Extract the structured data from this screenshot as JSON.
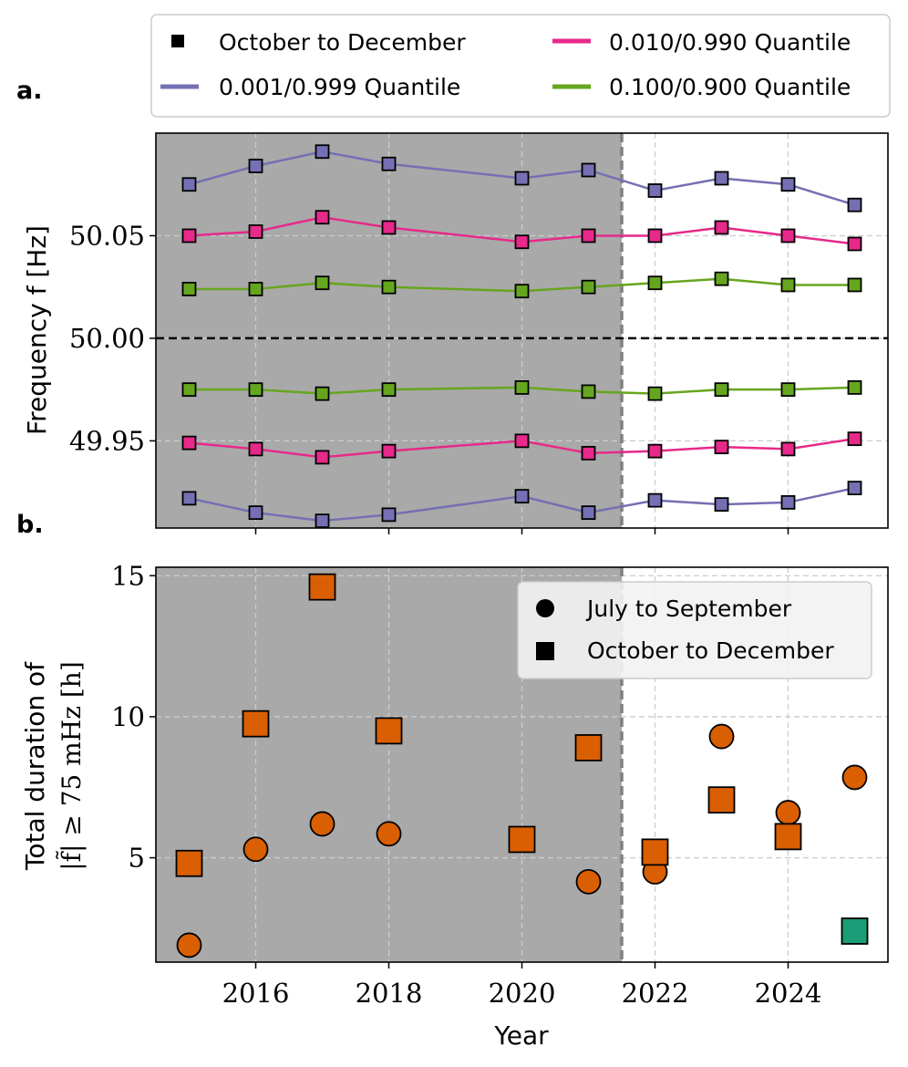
{
  "colors": {
    "q001": "#7570b3",
    "q010": "#e7298a",
    "q100": "#66a61e",
    "orange": "#d95f02",
    "teal": "#1b9e77",
    "shade": "#a9a9a9",
    "grid": "#cccccc",
    "dash_gray": "#808080"
  },
  "chart_data": [
    {
      "panel_label": "a.",
      "type": "line",
      "ylabel": "Frequency f [Hz]",
      "xlim": [
        2014.5,
        2025.5
      ],
      "ylim": [
        49.9075,
        50.1
      ],
      "yticks": [
        49.95,
        50.0,
        50.05
      ],
      "ytick_labels": [
        "49.95",
        "50.00",
        "50.05"
      ],
      "shaded_until": 2021.5,
      "reference_line": 50.0,
      "legend": {
        "entries": [
          {
            "label": "October to December",
            "kind": "marker"
          },
          {
            "label": "0.010/0.990 Quantile",
            "kind": "line",
            "color_key": "q010"
          },
          {
            "label": "0.001/0.999 Quantile",
            "kind": "line",
            "color_key": "q001"
          },
          {
            "label": "0.100/0.900 Quantile",
            "kind": "line",
            "color_key": "q100"
          }
        ]
      },
      "x": [
        2015,
        2016,
        2017,
        2018,
        2020,
        2021,
        2022,
        2023,
        2024,
        2025
      ],
      "series": [
        {
          "name": "0.001/0.999 Quantile upper",
          "color_key": "q001",
          "values": [
            50.075,
            50.084,
            50.091,
            50.085,
            50.078,
            50.082,
            50.072,
            50.078,
            50.075,
            50.065
          ]
        },
        {
          "name": "0.010/0.990 Quantile upper",
          "color_key": "q010",
          "values": [
            50.05,
            50.052,
            50.059,
            50.054,
            50.047,
            50.05,
            50.05,
            50.054,
            50.05,
            50.046
          ]
        },
        {
          "name": "0.100/0.900 Quantile upper",
          "color_key": "q100",
          "values": [
            50.024,
            50.024,
            50.027,
            50.025,
            50.023,
            50.025,
            50.027,
            50.029,
            50.026,
            50.026
          ]
        },
        {
          "name": "0.100/0.900 Quantile lower",
          "color_key": "q100",
          "values": [
            49.975,
            49.975,
            49.973,
            49.975,
            49.976,
            49.974,
            49.973,
            49.975,
            49.975,
            49.976
          ]
        },
        {
          "name": "0.010/0.990 Quantile lower",
          "color_key": "q010",
          "values": [
            49.949,
            49.946,
            49.942,
            49.945,
            49.95,
            49.944,
            49.945,
            49.947,
            49.946,
            49.951
          ]
        },
        {
          "name": "0.001/0.999 Quantile lower",
          "color_key": "q001",
          "values": [
            49.922,
            49.915,
            49.911,
            49.914,
            49.923,
            49.915,
            49.921,
            49.919,
            49.92,
            49.927
          ]
        }
      ]
    },
    {
      "panel_label": "b.",
      "type": "scatter",
      "xlabel": "Year",
      "ylabel_line1": "Total duration of",
      "ylabel_line2": "|f̃| ≥ 75 mHz [h]",
      "xlim": [
        2014.5,
        2025.5
      ],
      "ylim": [
        1.3,
        15.3
      ],
      "xticks": [
        2016,
        2018,
        2020,
        2022,
        2024
      ],
      "xtick_labels": [
        "2016",
        "2018",
        "2020",
        "2022",
        "2024"
      ],
      "yticks": [
        5,
        10,
        15
      ],
      "ytick_labels": [
        "5",
        "10",
        "15"
      ],
      "shaded_until": 2021.5,
      "legend": {
        "entries": [
          {
            "label": "July to September",
            "kind": "circle"
          },
          {
            "label": "October to December",
            "kind": "square"
          }
        ]
      },
      "series": [
        {
          "name": "July to September",
          "marker": "circle",
          "color_key": "orange",
          "x": [
            2015,
            2016,
            2017,
            2018,
            2020,
            2021,
            2022,
            2023,
            2024,
            2025
          ],
          "values": [
            1.9,
            5.3,
            6.2,
            5.85,
            5.65,
            4.15,
            4.5,
            9.3,
            6.6,
            7.85
          ]
        },
        {
          "name": "October to December",
          "marker": "square",
          "color_key": "orange",
          "x": [
            2015,
            2016,
            2017,
            2018,
            2020,
            2021,
            2022,
            2023,
            2024
          ],
          "values": [
            4.8,
            9.75,
            14.6,
            9.5,
            5.65,
            8.9,
            5.2,
            7.05,
            5.75
          ]
        },
        {
          "name": "October to December 2025",
          "marker": "square",
          "color_key": "teal",
          "x": [
            2025
          ],
          "values": [
            2.4
          ]
        }
      ]
    }
  ]
}
